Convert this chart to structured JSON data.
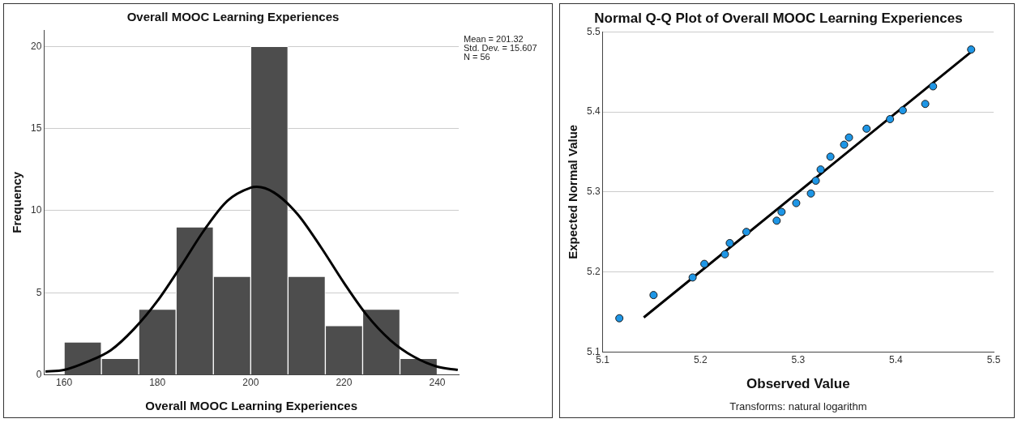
{
  "chart_data": [
    {
      "type": "histogram",
      "title": "Overall MOOC Learning Experiences",
      "xlabel": "Overall MOOC Learning Experiences",
      "ylabel": "Frequency",
      "bins": [
        160,
        168,
        176,
        184,
        192,
        200,
        208,
        216,
        224,
        232,
        240
      ],
      "values": [
        2,
        1,
        4,
        9,
        6,
        20,
        6,
        3,
        4,
        1
      ],
      "color": "#4d4d4d",
      "series": [
        {
          "type": "line",
          "color": "#000000",
          "x": [
            156,
            160,
            165,
            170,
            175,
            180,
            185,
            190,
            195,
            200,
            201.3,
            205,
            210,
            215,
            220,
            225,
            230,
            235,
            240,
            244.4
          ],
          "values": [
            0.2,
            0.3,
            0.8,
            1.5,
            2.8,
            4.5,
            6.6,
            8.8,
            10.6,
            11.4,
            11.45,
            11.1,
            9.8,
            7.8,
            5.6,
            3.6,
            2.1,
            1.1,
            0.5,
            0.3
          ]
        }
      ],
      "xlim": [
        155.7,
        244.6
      ],
      "xticks": [
        160,
        180,
        200,
        220,
        240
      ],
      "ylim": [
        0,
        21
      ],
      "yticks": [
        0,
        5,
        10,
        15,
        20
      ],
      "grid": "y",
      "legend": false,
      "annotations": [
        "Mean = 201.32",
        "Std. Dev. = 15.607",
        "N = 56"
      ]
    },
    {
      "type": "scatter",
      "title": "Normal Q-Q Plot of Overall MOOC Learning Experiences",
      "xlabel": "Observed Value",
      "ylabel": "Expected Normal Value",
      "series": [
        {
          "type": "scatter",
          "color": "#1e96e6",
          "marker": "circle",
          "x": [
            5.117,
            5.152,
            5.192,
            5.204,
            5.225,
            5.23,
            5.247,
            5.278,
            5.283,
            5.298,
            5.313,
            5.318,
            5.323,
            5.333,
            5.347,
            5.352,
            5.37,
            5.394,
            5.407,
            5.43,
            5.438,
            5.477
          ],
          "values": [
            5.142,
            5.171,
            5.193,
            5.21,
            5.222,
            5.236,
            5.25,
            5.264,
            5.275,
            5.286,
            5.298,
            5.314,
            5.328,
            5.344,
            5.359,
            5.368,
            5.379,
            5.391,
            5.402,
            5.41,
            5.432,
            5.478
          ]
        },
        {
          "type": "line",
          "color": "#000000",
          "marker": "none",
          "x": [
            5.142,
            5.48
          ],
          "values": [
            5.143,
            5.478
          ]
        }
      ],
      "xlim": [
        5.1,
        5.5
      ],
      "xticks": [
        5.1,
        5.2,
        5.3,
        5.4,
        5.5
      ],
      "ylim": [
        5.1,
        5.5
      ],
      "yticks": [
        5.1,
        5.2,
        5.3,
        5.4,
        5.5
      ],
      "grid": "y",
      "legend": false,
      "annotations": [
        "Transforms: natural logarithm"
      ]
    }
  ]
}
